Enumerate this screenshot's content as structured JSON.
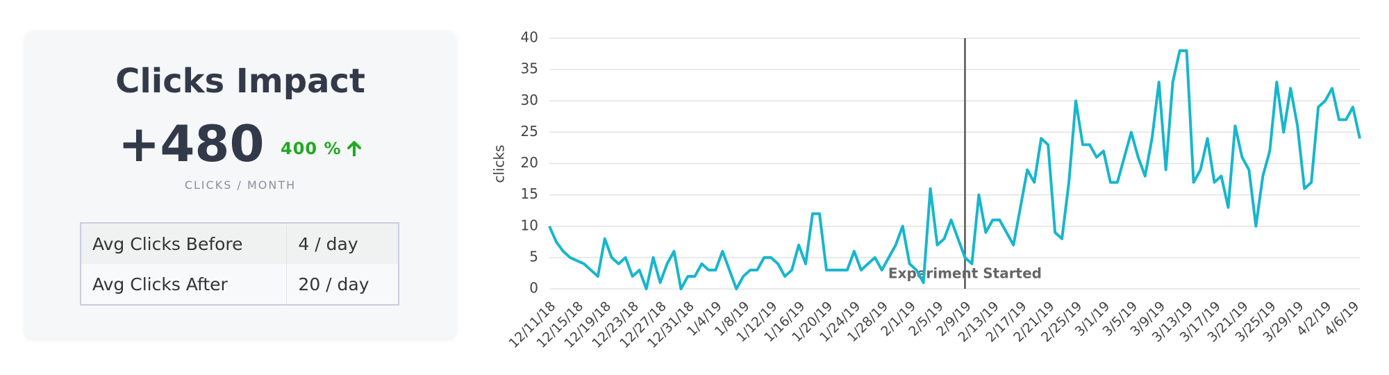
{
  "card": {
    "title": "Clicks Impact",
    "value": "+480",
    "change": "400 %",
    "unit": "CLICKS / MONTH",
    "table": {
      "rows": [
        [
          "Avg Clicks Before",
          "4 / day"
        ],
        [
          "Avg Clicks After",
          "20 / day"
        ]
      ]
    }
  },
  "chart_data": {
    "type": "line",
    "y_label": "clicks",
    "categories": [
      "12/11/18",
      null,
      null,
      null,
      "12/15/18",
      null,
      null,
      null,
      "12/19/18",
      null,
      null,
      null,
      "12/23/18",
      null,
      null,
      null,
      "12/27/18",
      null,
      null,
      null,
      "12/31/18",
      null,
      null,
      null,
      "1/4/19",
      null,
      null,
      null,
      "1/8/19",
      null,
      null,
      null,
      "1/12/19",
      null,
      null,
      null,
      "1/16/19",
      null,
      null,
      null,
      "1/20/19",
      null,
      null,
      null,
      "1/24/19",
      null,
      null,
      null,
      "1/28/19",
      null,
      null,
      null,
      "2/1/19",
      null,
      null,
      null,
      "2/5/19",
      null,
      null,
      null,
      "2/9/19",
      null,
      null,
      null,
      "2/13/19",
      null,
      null,
      null,
      "2/17/19",
      null,
      null,
      null,
      "2/21/19",
      null,
      null,
      null,
      "2/25/19",
      null,
      null,
      null,
      "3/1/19",
      null,
      null,
      null,
      "3/5/19",
      null,
      null,
      null,
      "3/9/19",
      null,
      null,
      null,
      "3/13/19",
      null,
      null,
      null,
      "3/17/19",
      null,
      null,
      null,
      "3/21/19",
      null,
      null,
      null,
      "3/25/19",
      null,
      null,
      null,
      "3/29/19",
      null,
      null,
      null,
      "4/2/19",
      null,
      null,
      null,
      "4/6/19",
      null
    ],
    "series": [
      {
        "name": "clicks",
        "color": "#17b6cd",
        "values": [
          10,
          7.5,
          6,
          5,
          4.5,
          4,
          3,
          2,
          8,
          5,
          4,
          5,
          2,
          3,
          0,
          5,
          1,
          4,
          6,
          0,
          2,
          2,
          4,
          3,
          3,
          6,
          3,
          0,
          2,
          3,
          3,
          5,
          5,
          4,
          2,
          3,
          7,
          4,
          12,
          12,
          3,
          3,
          3,
          3,
          6,
          3,
          4,
          5,
          3,
          5,
          7,
          10,
          4,
          3,
          1,
          16,
          7,
          8,
          11,
          8,
          5,
          4,
          15,
          9,
          11,
          11,
          9,
          7,
          13,
          19,
          17,
          24,
          23,
          9,
          8,
          17,
          30,
          23,
          23,
          21,
          22,
          17,
          17,
          21,
          25,
          21,
          18,
          24,
          33,
          19,
          33,
          38,
          38,
          17,
          19,
          24,
          17,
          18,
          13,
          26,
          21,
          19,
          10,
          18,
          22,
          33,
          25,
          32,
          26,
          16,
          17,
          29,
          30,
          32,
          27,
          27,
          29,
          24
        ]
      }
    ],
    "ylim": [
      0,
      40
    ],
    "yticks": [
      0,
      5,
      10,
      15,
      20,
      25,
      30,
      35,
      40
    ],
    "grid": true,
    "annotations": [
      {
        "text": "Experiment Started",
        "x": "2/9/19"
      }
    ]
  }
}
